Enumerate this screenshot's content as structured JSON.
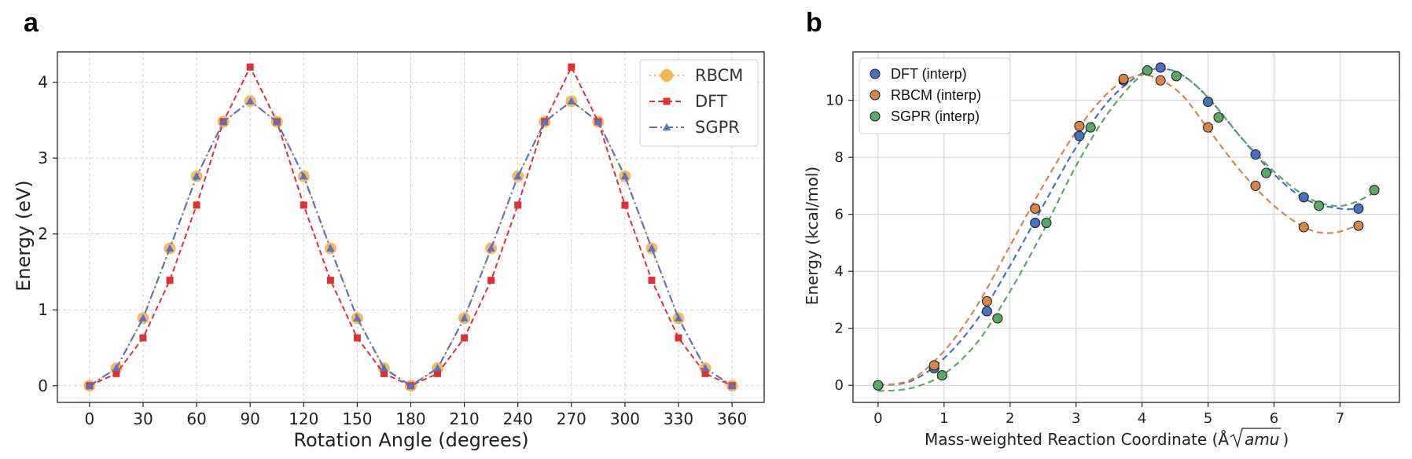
{
  "chart_data": [
    {
      "panel_label": "a",
      "type": "line",
      "xlabel": "Rotation Angle (degrees)",
      "ylabel": "Energy (eV)",
      "xlim": [
        -18,
        378
      ],
      "ylim": [
        -0.22,
        4.4
      ],
      "xticks": [
        0,
        30,
        60,
        90,
        120,
        150,
        180,
        210,
        240,
        270,
        300,
        330,
        360
      ],
      "yticks": [
        0,
        1,
        2,
        3,
        4
      ],
      "grid": true,
      "grid_style": "dashed",
      "legend_position": "top-right",
      "x": [
        0,
        15,
        30,
        45,
        60,
        75,
        90,
        105,
        120,
        135,
        150,
        165,
        180,
        195,
        210,
        225,
        240,
        255,
        270,
        285,
        300,
        315,
        330,
        345,
        360
      ],
      "series": [
        {
          "name": "RBCM",
          "color": "#f5b04f",
          "marker": "circle",
          "linestyle": "dotted",
          "values": [
            0,
            0.23,
            0.89,
            1.81,
            2.76,
            3.48,
            3.75,
            3.48,
            2.76,
            1.81,
            0.89,
            0.23,
            0,
            0.23,
            0.89,
            1.81,
            2.76,
            3.48,
            3.75,
            3.48,
            2.76,
            1.81,
            0.89,
            0.23,
            0
          ]
        },
        {
          "name": "DFT",
          "color": "#e03030",
          "marker": "square",
          "linestyle": "dashed",
          "values": [
            0,
            0.16,
            0.63,
            1.39,
            2.38,
            3.48,
            4.2,
            3.48,
            2.38,
            1.39,
            0.63,
            0.16,
            0,
            0.16,
            0.63,
            1.39,
            2.38,
            3.48,
            4.2,
            3.48,
            2.38,
            1.39,
            0.63,
            0.16,
            0
          ]
        },
        {
          "name": "SGPR",
          "color": "#5b72c4",
          "marker": "triangle",
          "linestyle": "dashdot",
          "values": [
            0,
            0.23,
            0.89,
            1.81,
            2.76,
            3.48,
            3.75,
            3.48,
            2.76,
            1.81,
            0.89,
            0.23,
            0,
            0.23,
            0.89,
            1.81,
            2.76,
            3.48,
            3.75,
            3.48,
            2.76,
            1.81,
            0.89,
            0.23,
            0
          ]
        }
      ]
    },
    {
      "panel_label": "b",
      "type": "scatter",
      "xlabel": "Mass-weighted Reaction Coordinate (Å",
      "xlabel_sqrt": "amu",
      "xlabel_close": ")",
      "ylabel": "Energy (kcal/mol)",
      "xlim": [
        -0.38,
        7.9
      ],
      "ylim": [
        -0.6,
        11.7
      ],
      "xticks": [
        0,
        1,
        2,
        3,
        4,
        5,
        6,
        7
      ],
      "yticks": [
        0,
        2,
        4,
        6,
        8,
        10
      ],
      "grid": true,
      "grid_style": "solid",
      "legend_position": "top-left",
      "series": [
        {
          "name": "DFT     (interp)",
          "color": "#4a6fc4",
          "x": [
            0,
            0.85,
            1.65,
            2.38,
            3.05,
            3.72,
            4.28,
            5.0,
            5.72,
            6.45,
            7.28
          ],
          "y": [
            0,
            0.6,
            2.6,
            5.7,
            8.75,
            10.7,
            11.15,
            9.95,
            8.1,
            6.6,
            6.2
          ],
          "curve_x": [
            0,
            0.5,
            1.0,
            1.5,
            2.0,
            2.5,
            3.0,
            3.5,
            4.0,
            4.3,
            4.6,
            5.0,
            5.5,
            6.0,
            6.5,
            7.0,
            7.3
          ],
          "curve_y": [
            0,
            0.15,
            0.95,
            2.3,
            4.2,
            6.3,
            8.35,
            10.0,
            10.95,
            11.1,
            10.9,
            10.1,
            8.7,
            7.4,
            6.5,
            6.2,
            6.2
          ]
        },
        {
          "name": "RBCM (interp)",
          "color": "#d9854a",
          "x": [
            0,
            0.85,
            1.65,
            2.38,
            3.05,
            3.72,
            4.28,
            5.0,
            5.72,
            6.45,
            7.28
          ],
          "y": [
            0,
            0.7,
            2.95,
            6.2,
            9.1,
            10.75,
            10.7,
            9.05,
            7.0,
            5.55,
            5.6
          ],
          "curve_x": [
            0,
            0.5,
            1.0,
            1.5,
            2.0,
            2.5,
            3.0,
            3.5,
            3.9,
            4.2,
            4.6,
            5.0,
            5.5,
            6.0,
            6.5,
            6.9,
            7.3
          ],
          "curve_y": [
            0,
            0.2,
            1.2,
            2.8,
            4.9,
            7.0,
            8.9,
            10.3,
            10.85,
            10.8,
            10.2,
            9.0,
            7.5,
            6.3,
            5.5,
            5.35,
            5.65
          ]
        },
        {
          "name": "SGPR (interp)",
          "color": "#5aa866",
          "x": [
            0,
            0.97,
            1.81,
            2.55,
            3.22,
            4.08,
            4.52,
            5.16,
            5.88,
            6.68,
            7.52
          ],
          "y": [
            0,
            0.35,
            2.35,
            5.7,
            9.05,
            11.05,
            10.85,
            9.4,
            7.45,
            6.3,
            6.85
          ],
          "curve_x": [
            0,
            0.5,
            1.0,
            1.5,
            2.0,
            2.5,
            3.0,
            3.5,
            4.0,
            4.3,
            4.6,
            5.0,
            5.5,
            6.0,
            6.5,
            6.9,
            7.2,
            7.55
          ],
          "curve_y": [
            -0.2,
            -0.1,
            0.4,
            1.5,
            3.3,
            5.4,
            7.7,
            9.6,
            10.9,
            11.1,
            10.9,
            10.1,
            8.7,
            7.5,
            6.6,
            6.3,
            6.4,
            6.8
          ]
        }
      ]
    }
  ]
}
